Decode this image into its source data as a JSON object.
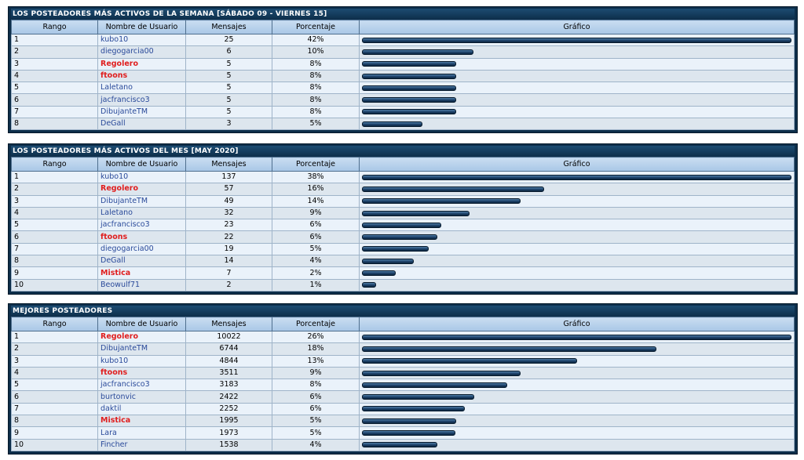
{
  "columns": {
    "rank": "Rango",
    "user": "Nombre de Usuario",
    "posts": "Mensajes",
    "percent": "Porcentaje",
    "graph": "Gráfico"
  },
  "sections": [
    {
      "title": "LOS POSTEADORES MÁS ACTIVOS DE LA SEMANA [SÁBADO 09 - VIERNES 15]",
      "rows": [
        {
          "rank": "1",
          "user": "kubo10",
          "mod": false,
          "posts": "25",
          "percent": "42%",
          "bar": 1.0
        },
        {
          "rank": "2",
          "user": "diegogarcia00",
          "mod": false,
          "posts": "6",
          "percent": "10%",
          "bar": 0.26
        },
        {
          "rank": "3",
          "user": "Regolero",
          "mod": true,
          "posts": "5",
          "percent": "8%",
          "bar": 0.22
        },
        {
          "rank": "4",
          "user": "ftoons",
          "mod": true,
          "posts": "5",
          "percent": "8%",
          "bar": 0.22
        },
        {
          "rank": "5",
          "user": "Laletano",
          "mod": false,
          "posts": "5",
          "percent": "8%",
          "bar": 0.22
        },
        {
          "rank": "6",
          "user": "jacfrancisco3",
          "mod": false,
          "posts": "5",
          "percent": "8%",
          "bar": 0.22
        },
        {
          "rank": "7",
          "user": "DibujanteTM",
          "mod": false,
          "posts": "5",
          "percent": "8%",
          "bar": 0.22
        },
        {
          "rank": "8",
          "user": "DeGall",
          "mod": false,
          "posts": "3",
          "percent": "5%",
          "bar": 0.14
        }
      ]
    },
    {
      "title": "LOS POSTEADORES MÁS ACTIVOS DEL MES [MAY 2020]",
      "rows": [
        {
          "rank": "1",
          "user": "kubo10",
          "mod": false,
          "posts": "137",
          "percent": "38%",
          "bar": 1.0
        },
        {
          "rank": "2",
          "user": "Regolero",
          "mod": true,
          "posts": "57",
          "percent": "16%",
          "bar": 0.425
        },
        {
          "rank": "3",
          "user": "DibujanteTM",
          "mod": false,
          "posts": "49",
          "percent": "14%",
          "bar": 0.37
        },
        {
          "rank": "4",
          "user": "Laletano",
          "mod": false,
          "posts": "32",
          "percent": "9%",
          "bar": 0.25
        },
        {
          "rank": "5",
          "user": "jacfrancisco3",
          "mod": false,
          "posts": "23",
          "percent": "6%",
          "bar": 0.185
        },
        {
          "rank": "6",
          "user": "ftoons",
          "mod": true,
          "posts": "22",
          "percent": "6%",
          "bar": 0.175
        },
        {
          "rank": "7",
          "user": "diegogarcia00",
          "mod": false,
          "posts": "19",
          "percent": "5%",
          "bar": 0.155
        },
        {
          "rank": "8",
          "user": "DeGall",
          "mod": false,
          "posts": "14",
          "percent": "4%",
          "bar": 0.12
        },
        {
          "rank": "9",
          "user": "Mistica",
          "mod": true,
          "posts": "7",
          "percent": "2%",
          "bar": 0.078
        },
        {
          "rank": "10",
          "user": "Beowulf71",
          "mod": false,
          "posts": "2",
          "percent": "1%",
          "bar": 0.033
        }
      ]
    },
    {
      "title": "MEJORES POSTEADORES",
      "rows": [
        {
          "rank": "1",
          "user": "Regolero",
          "mod": true,
          "posts": "10022",
          "percent": "26%",
          "bar": 1.0
        },
        {
          "rank": "2",
          "user": "DibujanteTM",
          "mod": false,
          "posts": "6744",
          "percent": "18%",
          "bar": 0.685
        },
        {
          "rank": "3",
          "user": "kubo10",
          "mod": false,
          "posts": "4844",
          "percent": "13%",
          "bar": 0.5
        },
        {
          "rank": "4",
          "user": "ftoons",
          "mod": true,
          "posts": "3511",
          "percent": "9%",
          "bar": 0.37
        },
        {
          "rank": "5",
          "user": "jacfrancisco3",
          "mod": false,
          "posts": "3183",
          "percent": "8%",
          "bar": 0.338
        },
        {
          "rank": "6",
          "user": "burtonvic",
          "mod": false,
          "posts": "2422",
          "percent": "6%",
          "bar": 0.262
        },
        {
          "rank": "7",
          "user": "daktil",
          "mod": false,
          "posts": "2252",
          "percent": "6%",
          "bar": 0.24
        },
        {
          "rank": "8",
          "user": "Mistica",
          "mod": true,
          "posts": "1995",
          "percent": "5%",
          "bar": 0.22
        },
        {
          "rank": "9",
          "user": "Lara",
          "mod": false,
          "posts": "1973",
          "percent": "5%",
          "bar": 0.218
        },
        {
          "rank": "10",
          "user": "Fincher",
          "mod": false,
          "posts": "1538",
          "percent": "4%",
          "bar": 0.175
        }
      ]
    }
  ],
  "colors": {
    "panel": "#0d2e4a",
    "header": "#b7d0ea",
    "moderator_name": "#e01e1e",
    "user_name": "#2a4a9a",
    "bar": "#1c4168"
  }
}
